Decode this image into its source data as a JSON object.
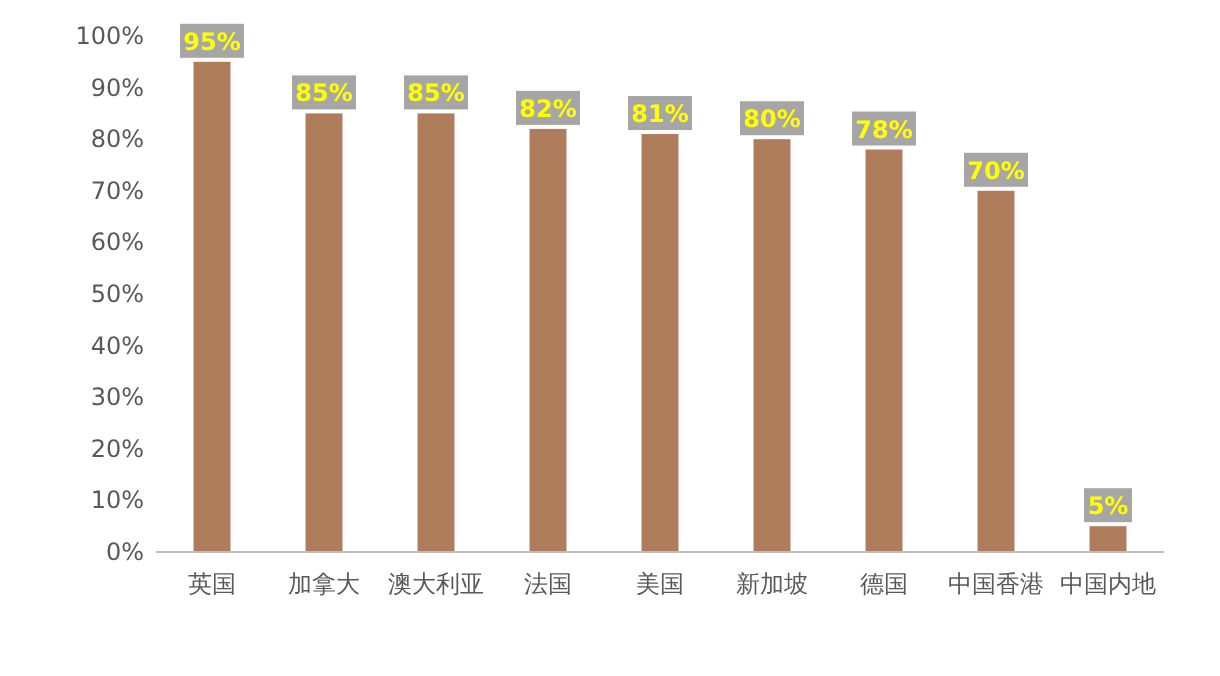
{
  "chart_data": {
    "type": "bar",
    "categories": [
      "英国",
      "加拿大",
      "澳大利亚",
      "法国",
      "美国",
      "新加坡",
      "德国",
      "中国香港",
      "中国内地"
    ],
    "values": [
      95,
      85,
      85,
      82,
      81,
      80,
      78,
      70,
      5
    ],
    "value_labels": [
      "95%",
      "85%",
      "85%",
      "82%",
      "81%",
      "80%",
      "78%",
      "70%",
      "5%"
    ],
    "color": "#b07d5c",
    "ylim": [
      0,
      100
    ],
    "yticks": [
      {
        "value": 0,
        "label": "0%"
      },
      {
        "value": 10,
        "label": "10%"
      },
      {
        "value": 20,
        "label": "20%"
      },
      {
        "value": 30,
        "label": "30%"
      },
      {
        "value": 40,
        "label": "40%"
      },
      {
        "value": 50,
        "label": "50%"
      },
      {
        "value": 60,
        "label": "60%"
      },
      {
        "value": 70,
        "label": "70%"
      },
      {
        "value": 80,
        "label": "80%"
      },
      {
        "value": 90,
        "label": "90%"
      },
      {
        "value": 100,
        "label": "100%"
      }
    ],
    "grid": false
  }
}
